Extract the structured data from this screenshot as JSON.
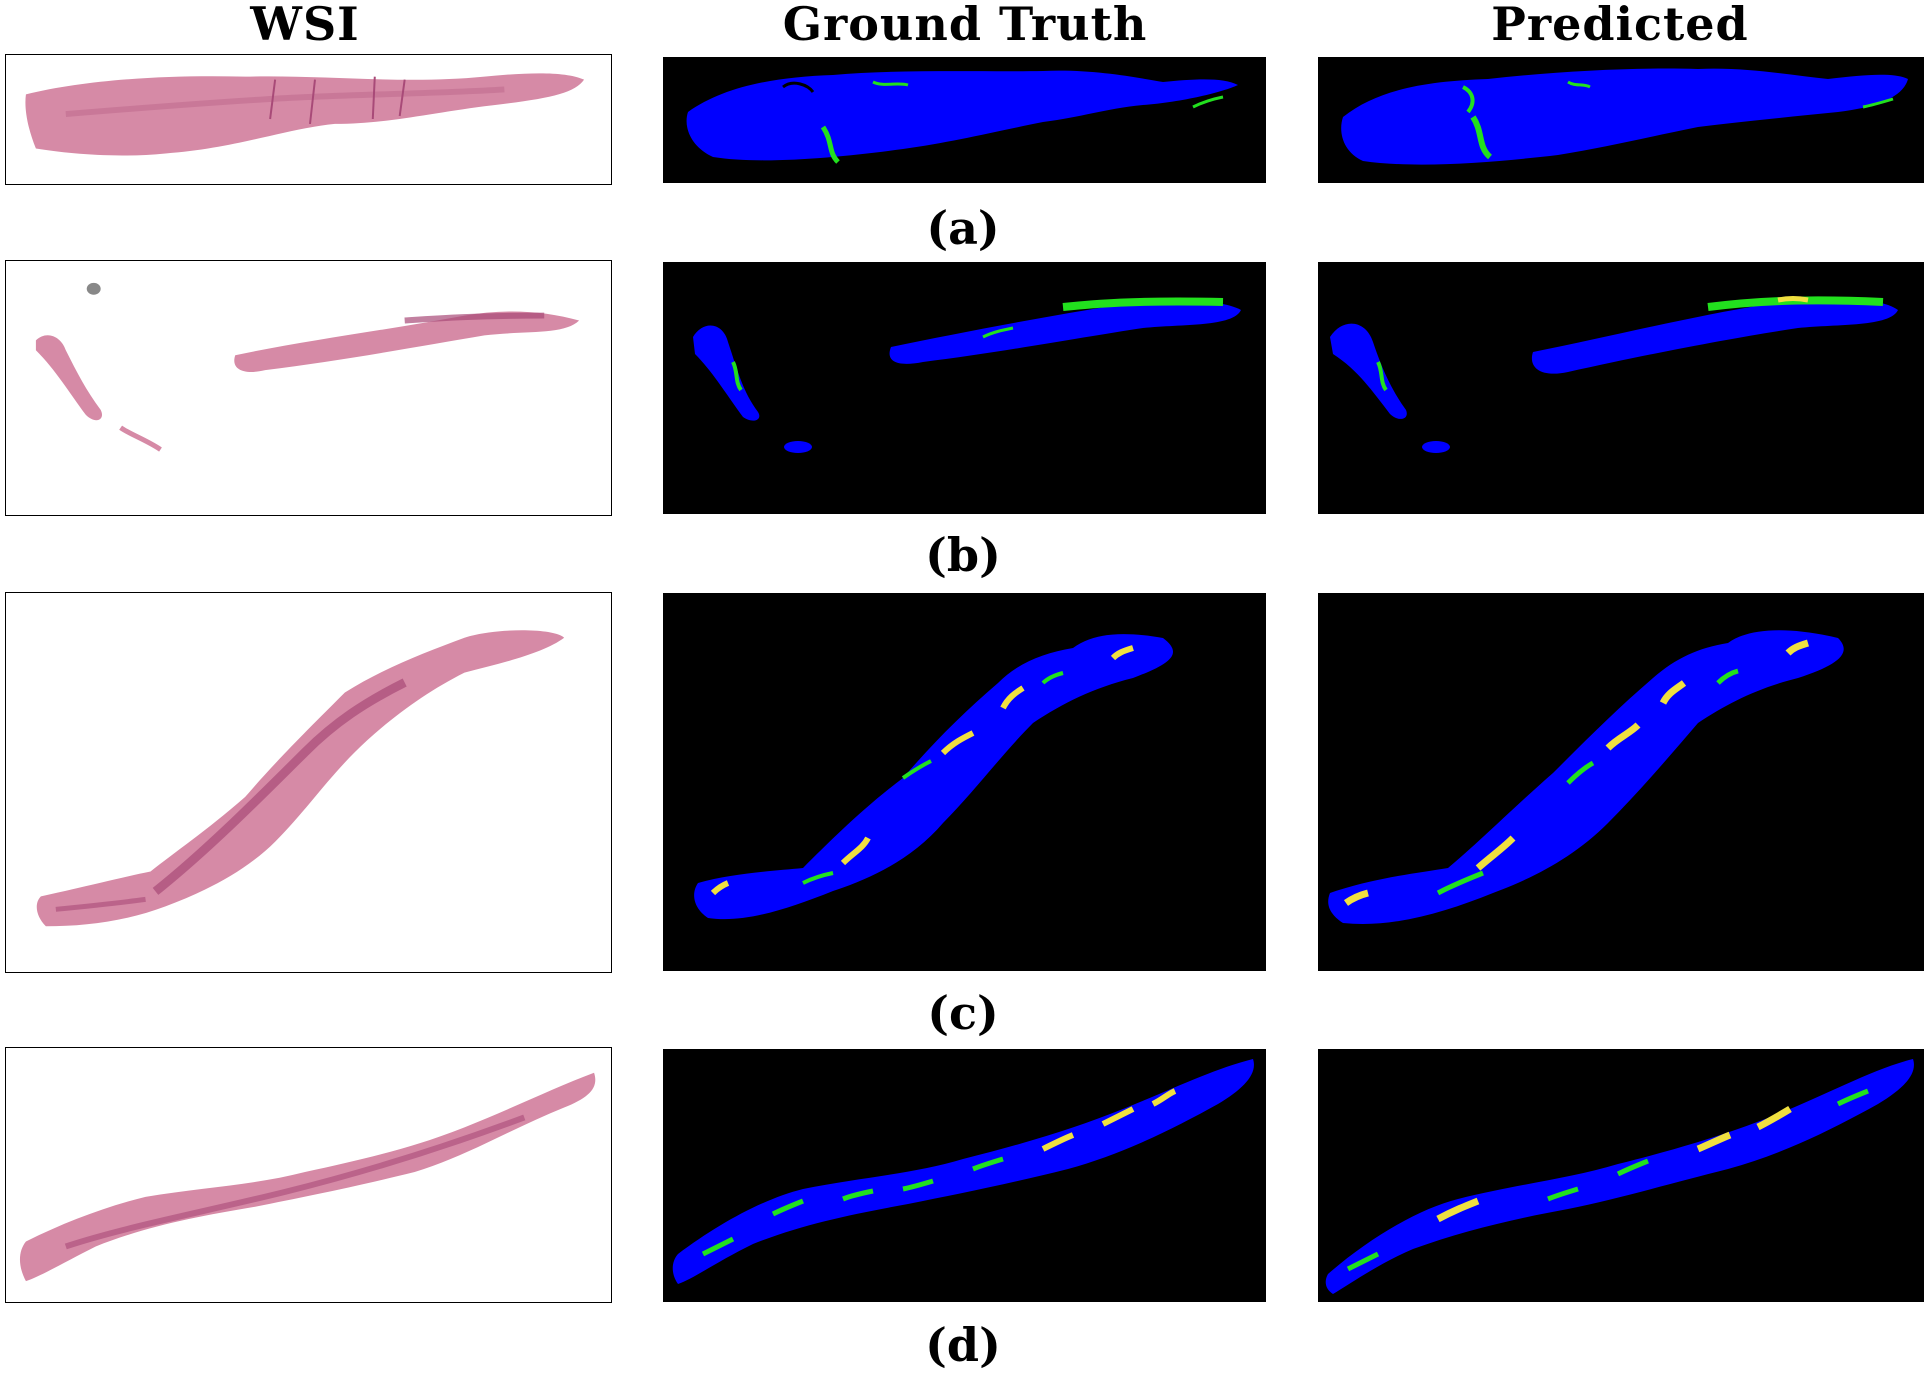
{
  "headers": {
    "wsi": "WSI",
    "ground_truth": "Ground Truth",
    "predicted": "Predicted"
  },
  "captions": [
    "(a)",
    "(b)",
    "(c)",
    "(d)"
  ],
  "colors": {
    "tissue": "#0000ff",
    "green_class": "#22e01e",
    "yellow_class": "#f0e040",
    "background": "#000000",
    "stain": "#d68aa6",
    "stain_dark": "#a84a78"
  }
}
